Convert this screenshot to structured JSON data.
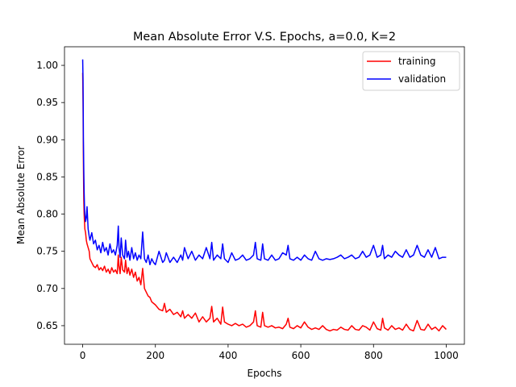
{
  "chart_data": {
    "type": "line",
    "title": "Mean Absolute Error V.S. Epochs, a=0.0, K=2",
    "xlabel": "Epochs",
    "ylabel": "Mean Absolute Error",
    "xlim": [
      -50,
      1050
    ],
    "ylim": [
      0.625,
      1.025
    ],
    "xticks": [
      0,
      200,
      400,
      600,
      800,
      1000
    ],
    "yticks": [
      0.65,
      0.7,
      0.75,
      0.8,
      0.85,
      0.9,
      0.95,
      1.0
    ],
    "ytick_labels": [
      "0.65",
      "0.70",
      "0.75",
      "0.80",
      "0.85",
      "0.90",
      "0.95",
      "1.00"
    ],
    "grid": false,
    "legend_position": "top-right",
    "series": [
      {
        "name": "training",
        "color": "#ff0000",
        "x": [
          0,
          1,
          2,
          3,
          4,
          5,
          6,
          8,
          10,
          12,
          15,
          18,
          20,
          25,
          30,
          35,
          40,
          45,
          50,
          55,
          60,
          65,
          70,
          75,
          80,
          85,
          90,
          95,
          98,
          100,
          103,
          106,
          110,
          115,
          118,
          122,
          126,
          130,
          135,
          140,
          145,
          150,
          155,
          160,
          165,
          170,
          175,
          180,
          185,
          190,
          195,
          200,
          210,
          220,
          225,
          230,
          240,
          250,
          260,
          270,
          275,
          280,
          290,
          300,
          310,
          320,
          330,
          340,
          350,
          355,
          360,
          370,
          380,
          385,
          390,
          400,
          410,
          420,
          430,
          440,
          450,
          460,
          470,
          475,
          480,
          490,
          495,
          500,
          510,
          520,
          530,
          540,
          550,
          560,
          565,
          570,
          580,
          590,
          600,
          610,
          620,
          630,
          640,
          650,
          660,
          670,
          680,
          690,
          700,
          710,
          720,
          730,
          740,
          750,
          760,
          770,
          780,
          790,
          800,
          810,
          820,
          825,
          830,
          840,
          850,
          860,
          870,
          880,
          890,
          900,
          910,
          920,
          930,
          940,
          950,
          960,
          970,
          980,
          990,
          1000
        ],
        "y": [
          0.99,
          0.95,
          0.87,
          0.82,
          0.8,
          0.79,
          0.78,
          0.775,
          0.765,
          0.76,
          0.755,
          0.75,
          0.74,
          0.735,
          0.73,
          0.728,
          0.732,
          0.725,
          0.728,
          0.724,
          0.73,
          0.722,
          0.726,
          0.72,
          0.728,
          0.722,
          0.725,
          0.72,
          0.745,
          0.73,
          0.72,
          0.742,
          0.725,
          0.722,
          0.738,
          0.72,
          0.728,
          0.718,
          0.726,
          0.715,
          0.722,
          0.71,
          0.715,
          0.705,
          0.727,
          0.7,
          0.695,
          0.69,
          0.688,
          0.682,
          0.68,
          0.678,
          0.672,
          0.67,
          0.68,
          0.668,
          0.672,
          0.665,
          0.668,
          0.662,
          0.67,
          0.66,
          0.665,
          0.66,
          0.667,
          0.655,
          0.662,
          0.655,
          0.66,
          0.676,
          0.655,
          0.66,
          0.652,
          0.675,
          0.655,
          0.652,
          0.65,
          0.653,
          0.65,
          0.652,
          0.648,
          0.65,
          0.655,
          0.67,
          0.65,
          0.648,
          0.668,
          0.65,
          0.648,
          0.65,
          0.647,
          0.648,
          0.646,
          0.652,
          0.66,
          0.648,
          0.646,
          0.65,
          0.647,
          0.655,
          0.648,
          0.645,
          0.647,
          0.645,
          0.65,
          0.645,
          0.643,
          0.645,
          0.644,
          0.648,
          0.645,
          0.644,
          0.65,
          0.645,
          0.644,
          0.65,
          0.648,
          0.644,
          0.655,
          0.646,
          0.644,
          0.66,
          0.647,
          0.644,
          0.65,
          0.645,
          0.647,
          0.644,
          0.652,
          0.645,
          0.643,
          0.657,
          0.645,
          0.644,
          0.652,
          0.645,
          0.648,
          0.643,
          0.65,
          0.645
        ]
      },
      {
        "name": "validation",
        "color": "#0000ff",
        "x": [
          0,
          1,
          2,
          3,
          4,
          5,
          6,
          8,
          10,
          12,
          15,
          18,
          20,
          25,
          30,
          35,
          40,
          45,
          50,
          55,
          60,
          65,
          70,
          75,
          80,
          85,
          90,
          95,
          98,
          100,
          103,
          106,
          110,
          115,
          118,
          122,
          126,
          130,
          135,
          140,
          145,
          150,
          155,
          160,
          165,
          170,
          175,
          180,
          185,
          190,
          195,
          200,
          210,
          220,
          225,
          230,
          240,
          250,
          260,
          270,
          275,
          280,
          290,
          300,
          310,
          320,
          330,
          340,
          350,
          355,
          360,
          370,
          380,
          385,
          390,
          400,
          410,
          420,
          430,
          440,
          450,
          460,
          470,
          475,
          480,
          490,
          495,
          500,
          510,
          520,
          530,
          540,
          550,
          560,
          565,
          570,
          580,
          590,
          600,
          610,
          620,
          630,
          640,
          650,
          660,
          670,
          680,
          690,
          700,
          710,
          720,
          730,
          740,
          750,
          760,
          770,
          780,
          790,
          800,
          810,
          820,
          825,
          830,
          840,
          850,
          860,
          870,
          880,
          890,
          900,
          910,
          920,
          930,
          940,
          950,
          960,
          970,
          980,
          990,
          1000
        ],
        "y": [
          1.008,
          0.98,
          0.9,
          0.86,
          0.83,
          0.81,
          0.8,
          0.79,
          0.795,
          0.81,
          0.78,
          0.77,
          0.765,
          0.775,
          0.76,
          0.765,
          0.752,
          0.758,
          0.748,
          0.762,
          0.75,
          0.755,
          0.745,
          0.76,
          0.748,
          0.752,
          0.745,
          0.758,
          0.784,
          0.755,
          0.742,
          0.768,
          0.745,
          0.74,
          0.765,
          0.742,
          0.75,
          0.738,
          0.755,
          0.74,
          0.748,
          0.738,
          0.745,
          0.74,
          0.776,
          0.74,
          0.735,
          0.745,
          0.732,
          0.74,
          0.735,
          0.732,
          0.75,
          0.735,
          0.738,
          0.748,
          0.735,
          0.742,
          0.735,
          0.745,
          0.738,
          0.755,
          0.74,
          0.75,
          0.738,
          0.745,
          0.74,
          0.755,
          0.74,
          0.762,
          0.738,
          0.745,
          0.74,
          0.76,
          0.74,
          0.735,
          0.748,
          0.738,
          0.74,
          0.745,
          0.738,
          0.74,
          0.745,
          0.762,
          0.74,
          0.738,
          0.76,
          0.74,
          0.738,
          0.745,
          0.738,
          0.74,
          0.748,
          0.745,
          0.758,
          0.74,
          0.738,
          0.742,
          0.738,
          0.745,
          0.74,
          0.738,
          0.75,
          0.74,
          0.738,
          0.74,
          0.739,
          0.74,
          0.742,
          0.745,
          0.74,
          0.742,
          0.745,
          0.74,
          0.742,
          0.75,
          0.742,
          0.745,
          0.758,
          0.742,
          0.745,
          0.758,
          0.74,
          0.745,
          0.742,
          0.75,
          0.745,
          0.742,
          0.752,
          0.742,
          0.745,
          0.758,
          0.745,
          0.742,
          0.752,
          0.742,
          0.755,
          0.74,
          0.742,
          0.742
        ]
      }
    ]
  }
}
